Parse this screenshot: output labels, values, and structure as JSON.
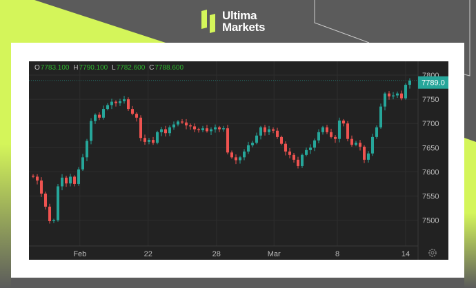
{
  "brand": {
    "line1": "Ultima",
    "line2": "Markets",
    "accent": "#d4f55a"
  },
  "header": {
    "o_label": "O",
    "o": "7783.100",
    "h_label": "H",
    "h": "7790.100",
    "l_label": "L",
    "l": "7782.600",
    "c_label": "C",
    "c": "7788.600"
  },
  "price_badge": "7789.0",
  "settings_icon": "gear-icon",
  "colors": {
    "up": "#26a69a",
    "down": "#ef5350",
    "background": "#222222",
    "badge": "#26a69a"
  },
  "chart_data": {
    "type": "candlestick",
    "title": "",
    "ylim": [
      7460,
      7805
    ],
    "y_ticks": [
      "7800",
      "7750",
      "7700",
      "7650",
      "7600",
      "7550",
      "7500"
    ],
    "x_ticks": [
      {
        "label": "Feb",
        "index": 11.3
      },
      {
        "label": "22",
        "index": 27.8
      },
      {
        "label": "28",
        "index": 44.3
      },
      {
        "label": "Mar",
        "index": 58.2
      },
      {
        "label": "8",
        "index": 73.5
      },
      {
        "label": "14",
        "index": 90
      }
    ],
    "first_open": 7592,
    "closes": [
      7590,
      7582,
      7555,
      7528,
      7498,
      7500,
      7570,
      7588,
      7576,
      7590,
      7575,
      7605,
      7630,
      7664,
      7705,
      7718,
      7712,
      7730,
      7738,
      7745,
      7742,
      7746,
      7750,
      7730,
      7720,
      7712,
      7670,
      7662,
      7666,
      7660,
      7682,
      7688,
      7680,
      7692,
      7698,
      7704,
      7702,
      7696,
      7694,
      7688,
      7686,
      7690,
      7684,
      7688,
      7692,
      7688,
      7690,
      7640,
      7630,
      7624,
      7630,
      7642,
      7655,
      7660,
      7675,
      7692,
      7682,
      7688,
      7685,
      7672,
      7658,
      7642,
      7635,
      7625,
      7612,
      7635,
      7645,
      7650,
      7665,
      7682,
      7692,
      7682,
      7672,
      7668,
      7706,
      7700,
      7668,
      7656,
      7660,
      7652,
      7625,
      7638,
      7672,
      7692,
      7735,
      7762,
      7756,
      7758,
      7762,
      7752,
      7780,
      7788.6
    ],
    "last_price": 7789.0
  }
}
